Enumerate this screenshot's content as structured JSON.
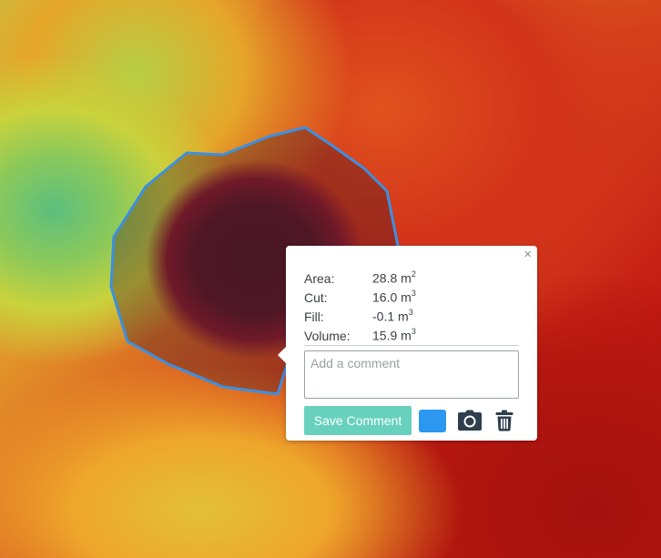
{
  "map": {
    "background": "elevation-heatmap",
    "polygon_color": "#3d8fe0"
  },
  "popup": {
    "close_symbol": "×",
    "stats": [
      {
        "label": "Area:",
        "value": "28.8 m",
        "unit_power": "2"
      },
      {
        "label": "Cut:",
        "value": "16.0 m",
        "unit_power": "3"
      },
      {
        "label": "Fill:",
        "value": "-0.1 m",
        "unit_power": "3"
      },
      {
        "label": "Volume:",
        "value": "15.9 m",
        "unit_power": "3"
      }
    ],
    "comment_placeholder": "Add a comment",
    "save_label": "Save Comment",
    "swatch_color": "#2b97f0",
    "icons": [
      "camera-icon",
      "trash-icon"
    ]
  }
}
